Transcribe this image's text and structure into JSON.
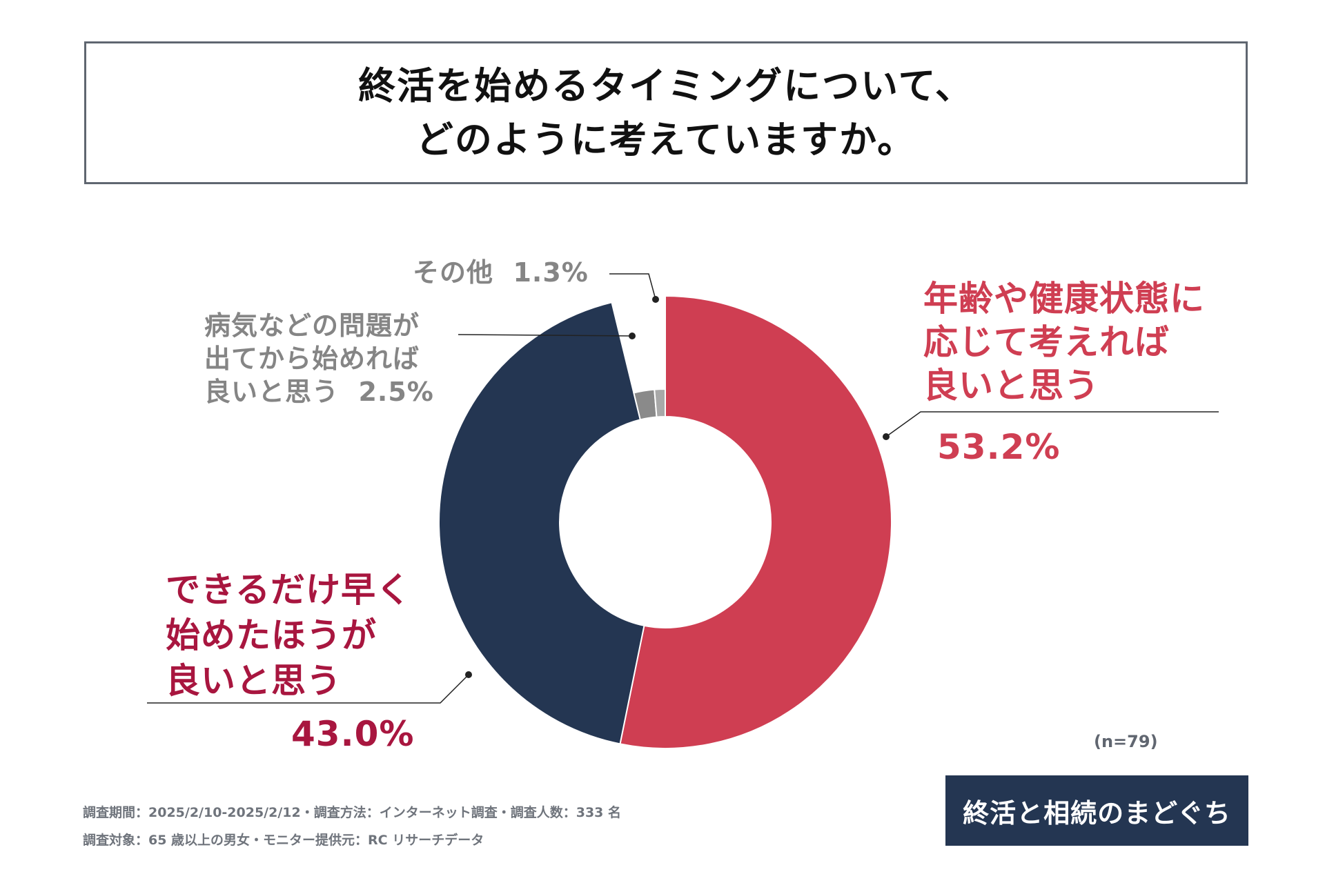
{
  "title": {
    "line1": "終活を始めるタイミングについて、",
    "line2": "どのように考えていますか。"
  },
  "chart_data": {
    "type": "pie",
    "style": "donut",
    "title": "終活を始めるタイミングについて、どのように考えていますか。",
    "categories": [
      "年齢や健康状態に応じて考えれば良いと思う",
      "できるだけ早く始めたほうが良いと思う",
      "病気などの問題が出てから始めれば良いと思う",
      "その他"
    ],
    "values": [
      53.2,
      43.0,
      2.5,
      1.3
    ],
    "colors": [
      "#cf3e52",
      "#243652",
      "#8a8a8a",
      "#a8a8a8"
    ],
    "n": 79
  },
  "labels": {
    "age_health": {
      "line1": "年齢や健康状態に",
      "line2": "応じて考えれば",
      "line3": "良いと思う",
      "pct": "53.2%"
    },
    "early": {
      "line1": "できるだけ早く",
      "line2": "始めたほうが",
      "line3": "良いと思う",
      "pct": "43.0%"
    },
    "illness": {
      "line1": "病気などの問題が",
      "line2": "出てから始めれば",
      "line3": "良いと思う",
      "pct": "2.5%"
    },
    "other": {
      "name": "その他",
      "pct": "1.3%"
    }
  },
  "sample_note": "(n=79)",
  "footer": {
    "line1": "調査期間：2025/2/10-2025/2/12・調査方法：インターネット調査・調査人数：333 名",
    "line2": "調査対象：65 歳以上の男女・モニター提供元：RC リサーチデータ"
  },
  "logo": {
    "text": "終活と相続のまどぐち",
    "bg_color": "#243652"
  }
}
